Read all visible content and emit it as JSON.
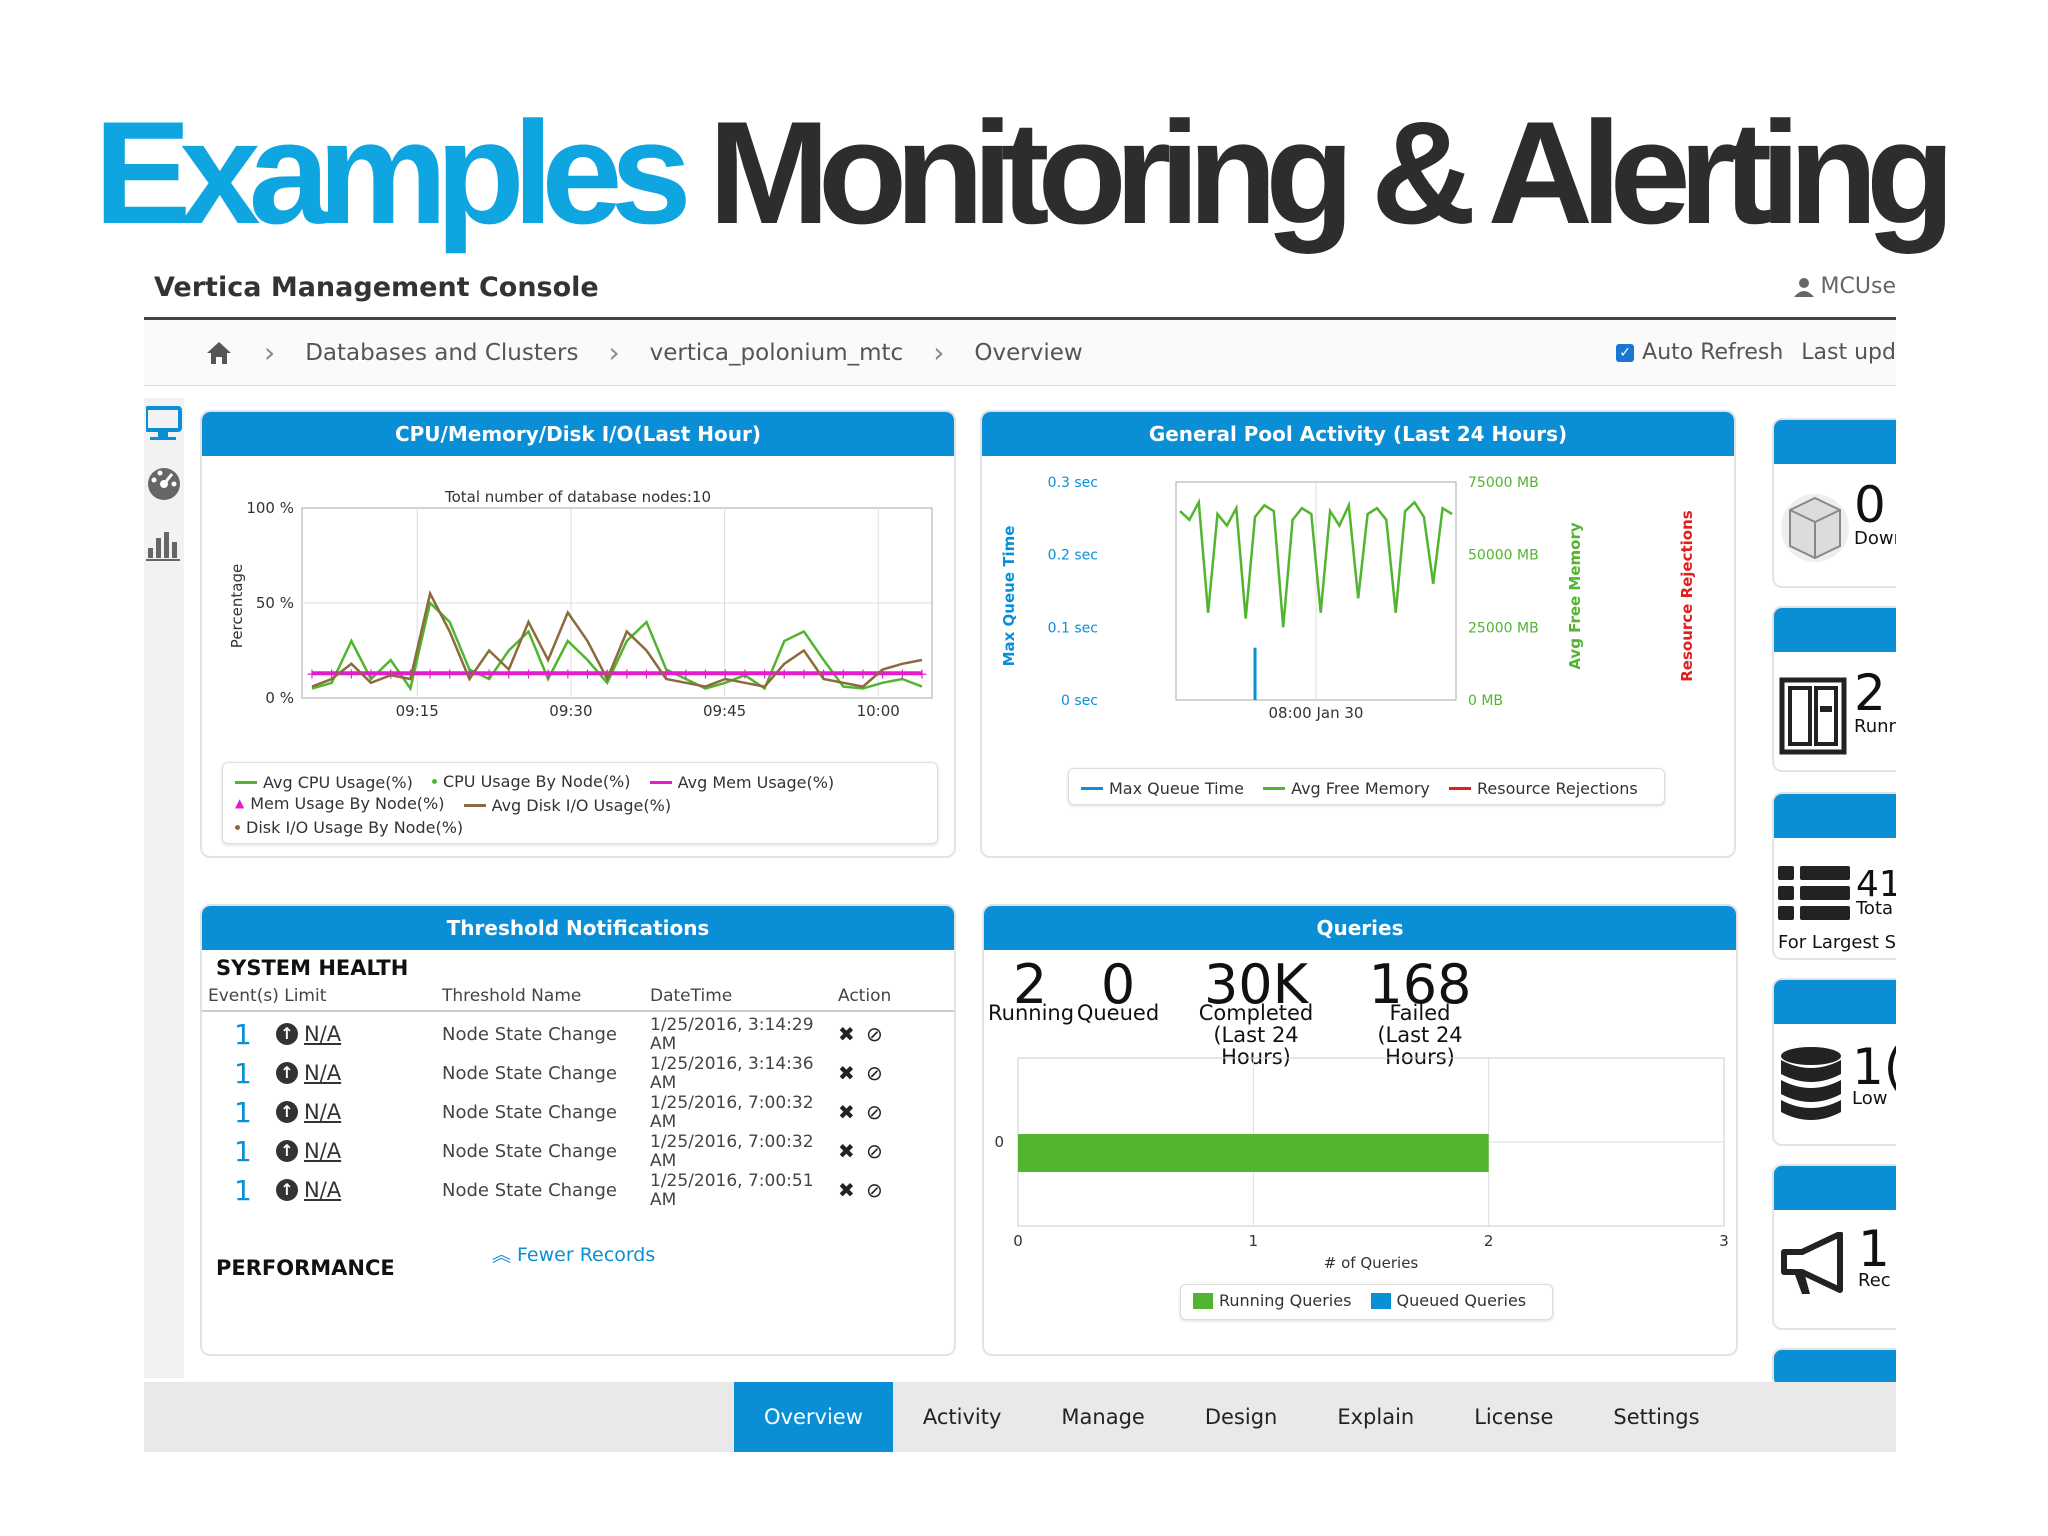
{
  "slide": {
    "title_blue": "Examples",
    "title_dark": "Monitoring & Alerting"
  },
  "app": {
    "title": "Vertica Management Console",
    "user": "MCUse"
  },
  "breadcrumb": {
    "items": [
      "Databases and Clusters",
      "vertica_polonium_mtc",
      "Overview"
    ]
  },
  "refresh": {
    "auto_refresh_label": "Auto Refresh",
    "last_updated": "Last upd"
  },
  "panels": {
    "cpu": {
      "title": "CPU/Memory/Disk I/O(Last Hour)",
      "subtitle": "Total number of database nodes:10",
      "ylabel": "Percentage",
      "legend": [
        "Avg CPU Usage(%)",
        "CPU Usage By Node(%)",
        "Avg Mem Usage(%)",
        "Mem Usage By Node(%)",
        "Avg Disk I/O Usage(%)",
        "Disk I/O Usage By Node(%)"
      ]
    },
    "pool": {
      "title": "General Pool Activity (Last 24 Hours)",
      "y_left_label": "Max Queue Time",
      "y_right_label": "Avg Free Memory",
      "y_right2_label": "Resource Rejections",
      "legend": [
        "Max Queue Time",
        "Avg Free Memory",
        "Resource Rejections"
      ]
    },
    "threshold": {
      "title": "Threshold Notifications",
      "system_health": "SYSTEM HEALTH",
      "columns": [
        "Event(s) Limit",
        "Threshold Name",
        "DateTime",
        "Action"
      ],
      "rows": [
        {
          "count": "1",
          "limit": "N/A",
          "name": "Node State Change",
          "date": "1/25/2016, 3:14:29 AM"
        },
        {
          "count": "1",
          "limit": "N/A",
          "name": "Node State Change",
          "date": "1/25/2016, 3:14:36 AM"
        },
        {
          "count": "1",
          "limit": "N/A",
          "name": "Node State Change",
          "date": "1/25/2016, 7:00:32 AM"
        },
        {
          "count": "1",
          "limit": "N/A",
          "name": "Node State Change",
          "date": "1/25/2016, 7:00:32 AM"
        },
        {
          "count": "1",
          "limit": "N/A",
          "name": "Node State Change",
          "date": "1/25/2016, 7:00:51 AM"
        }
      ],
      "fewer_records": "Fewer Records",
      "performance": "PERFORMANCE"
    },
    "queries": {
      "title": "Queries",
      "stats": [
        {
          "value": "2",
          "label": "Running",
          "sub": ""
        },
        {
          "value": "0",
          "label": "Queued",
          "sub": ""
        },
        {
          "value": "30K",
          "label": "Completed",
          "sub": "(Last 24 Hours)"
        },
        {
          "value": "168",
          "label": "Failed",
          "sub": "(Last 24 Hours)"
        }
      ],
      "legend": [
        "Running Queries",
        "Queued Queries"
      ]
    }
  },
  "side_cards": [
    {
      "big": "0",
      "small": "Dowr",
      "icon": "cube-icon"
    },
    {
      "big": "2",
      "small": "Runn",
      "icon": "server-icon"
    },
    {
      "big": "41",
      "small": "Tota",
      "footer": "For Largest Scl",
      "icon": "list-icon"
    },
    {
      "big": "1(",
      "small": "Low",
      "icon": "database-icon"
    },
    {
      "big": "1",
      "small": "Rec",
      "icon": "megaphone-icon"
    }
  ],
  "nav": {
    "tabs": [
      "Overview",
      "Activity",
      "Manage",
      "Design",
      "Explain",
      "License",
      "Settings"
    ],
    "active": "Overview"
  },
  "colors": {
    "accent": "#0a8fd6",
    "title_blue": "#0ea5e0",
    "green": "#52b52f",
    "brown": "#8b6b3e",
    "magenta": "#e51bd0",
    "red": "#e02020"
  },
  "chart_data": [
    {
      "type": "line",
      "title": "Total number of database nodes:10",
      "ylabel": "Percentage",
      "xlabel": "",
      "x_ticks": [
        "09:15",
        "09:30",
        "09:45",
        "10:00"
      ],
      "y_ticks": [
        "100 %",
        "50 %",
        "0 %"
      ],
      "ylim": [
        0,
        100
      ],
      "legend_position": "bottom",
      "grid": true,
      "series": [
        {
          "name": "Avg CPU Usage(%)",
          "color": "#52b52f",
          "values": [
            5,
            8,
            30,
            10,
            20,
            5,
            50,
            40,
            15,
            10,
            25,
            35,
            10,
            30,
            20,
            8,
            30,
            40,
            15,
            10,
            5,
            8,
            12,
            5,
            30,
            35,
            20,
            6,
            5,
            8,
            10,
            6
          ]
        },
        {
          "name": "Avg Mem Usage(%)",
          "color": "#e51bd0",
          "values": [
            13,
            13,
            13,
            13,
            13,
            13,
            13,
            13,
            13,
            13,
            13,
            13,
            13,
            13,
            13,
            13,
            13,
            13,
            13,
            13,
            13,
            13,
            13,
            13,
            13,
            13,
            13,
            13,
            13,
            13,
            13,
            13
          ]
        },
        {
          "name": "Avg Disk I/O Usage(%)",
          "color": "#8b6b3e",
          "values": [
            6,
            10,
            18,
            8,
            12,
            10,
            55,
            35,
            10,
            25,
            15,
            40,
            20,
            45,
            30,
            10,
            35,
            25,
            10,
            8,
            6,
            10,
            8,
            6,
            18,
            25,
            10,
            8,
            6,
            15,
            18,
            20
          ]
        }
      ]
    },
    {
      "type": "line",
      "title": "General Pool Activity (Last 24 Hours)",
      "y_left_ticks": [
        "0.3 sec",
        "0.2 sec",
        "0.1 sec",
        "0 sec"
      ],
      "y_right_ticks": [
        "75000 MB",
        "50000 MB",
        "25000 MB",
        "0 MB"
      ],
      "x_ticks": [
        "08:00 Jan 30"
      ],
      "y_right_lim": [
        0,
        75000
      ],
      "legend_position": "bottom",
      "series": [
        {
          "name": "Avg Free Memory",
          "color": "#52b52f",
          "values": [
            65000,
            62000,
            68000,
            30000,
            64000,
            60000,
            66000,
            28000,
            63000,
            67000,
            65000,
            25000,
            62000,
            66000,
            64000,
            30000,
            65000,
            60000,
            67000,
            35000,
            64000,
            66000,
            62000,
            30000,
            65000,
            68000,
            63000,
            40000,
            66000,
            64000
          ]
        },
        {
          "name": "Max Queue Time",
          "color": "#0a8fd6",
          "values": [
            0,
            0,
            0,
            0,
            0,
            0,
            0,
            0,
            0.03,
            0,
            0,
            0,
            0,
            0,
            0,
            0,
            0,
            0,
            0,
            0,
            0,
            0,
            0,
            0,
            0,
            0,
            0,
            0,
            0,
            0
          ]
        },
        {
          "name": "Resource Rejections",
          "color": "#e02020",
          "values": []
        }
      ]
    },
    {
      "type": "bar",
      "orientation": "horizontal",
      "categories": [
        "0"
      ],
      "xlabel": "# of Queries",
      "x_ticks": [
        "0",
        "1",
        "2",
        "3"
      ],
      "xlim": [
        0,
        3
      ],
      "legend_position": "bottom",
      "series": [
        {
          "name": "Running Queries",
          "color": "#52b52f",
          "values": [
            2
          ]
        },
        {
          "name": "Queued Queries",
          "color": "#0a8fd6",
          "values": [
            0
          ]
        }
      ]
    }
  ]
}
